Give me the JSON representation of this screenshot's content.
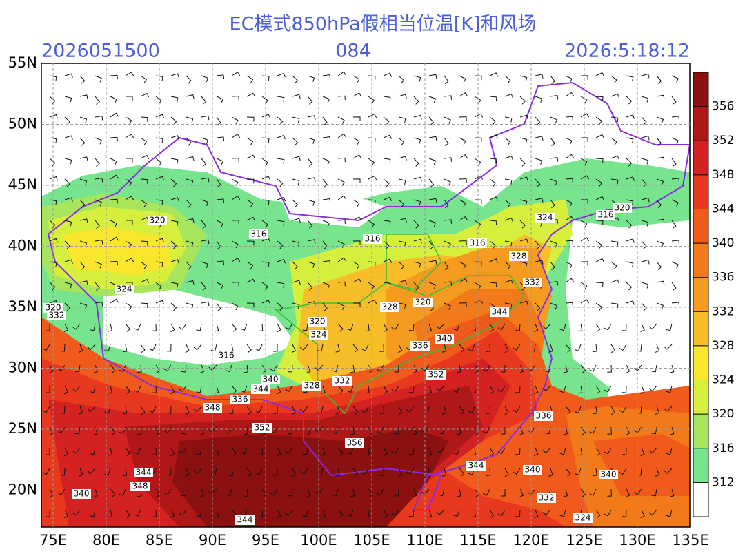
{
  "map": {
    "title": "EC模式850hPa假相当位温[K]和风场",
    "init_time": "2026051500",
    "forecast_hour": "084",
    "valid_time": "2026:5:18:12",
    "lon_labels": [
      "75E",
      "80E",
      "85E",
      "90E",
      "95E",
      "100E",
      "105E",
      "110E",
      "115E",
      "120E",
      "125E",
      "130E",
      "135E"
    ],
    "lat_labels": [
      "55N",
      "50N",
      "45N",
      "40N",
      "35N",
      "30N",
      "25N",
      "20N"
    ],
    "colorbar": {
      "ticks": [
        356,
        352,
        348,
        344,
        340,
        336,
        332,
        328,
        324,
        320,
        316,
        312
      ],
      "colors": [
        "#8b1010",
        "#b01818",
        "#d42222",
        "#e8391e",
        "#f05a1a",
        "#f27a18",
        "#f59b20",
        "#f8be2a",
        "#fae62c",
        "#d6ee3c",
        "#a6e55c",
        "#78e48e",
        "#ffffff"
      ]
    },
    "contour_labels": [
      320,
      316,
      316,
      316,
      324,
      316,
      320,
      328,
      332,
      324,
      320,
      332,
      328,
      320,
      344,
      320,
      324,
      336,
      340,
      316,
      340,
      332,
      328,
      344,
      336,
      348,
      352,
      352,
      356,
      336,
      344,
      348,
      340,
      340,
      340,
      332,
      344,
      324,
      344
    ]
  }
}
